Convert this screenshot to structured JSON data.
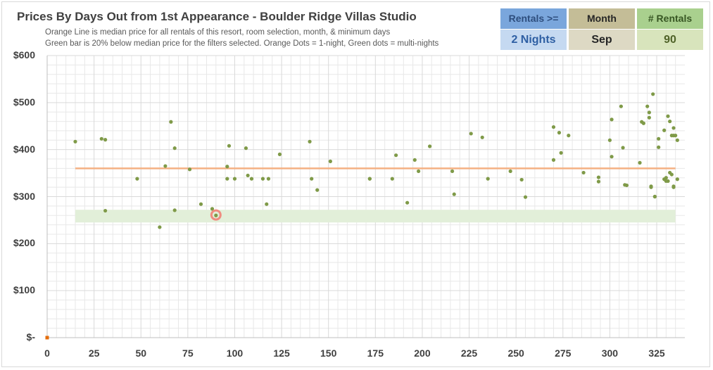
{
  "title": "Prices By Days Out from 1st Appearance - Boulder Ridge Villas Studio",
  "subtitle_lines": [
    "Orange Line is median price for all rentals of this resort, room selection, month, & minimum days",
    "Green bar is 20% below median price for the filters selected. Orange Dots = 1-night, Green dots = multi-nights"
  ],
  "filters": {
    "rentals": {
      "header": "Rentals >=",
      "value": "2 Nights",
      "header_bg": "#7aa6dc",
      "header_color": "#2e4e7e",
      "value_bg": "#c5d9f1",
      "value_color": "#2e5fa3"
    },
    "month": {
      "header": "Month",
      "value": "Sep",
      "header_bg": "#c4bd97",
      "header_color": "#262626",
      "value_bg": "#ddd9c4",
      "value_color": "#262626"
    },
    "count": {
      "header": "# Rentals",
      "value": "90",
      "header_bg": "#a9d08e",
      "header_color": "#375623",
      "value_bg": "#d8e4bc",
      "value_color": "#4f6228"
    }
  },
  "colors": {
    "median_line": "#f4b183",
    "green_band": "#e2efd9",
    "green_dot": "#7f9a48",
    "orange_dot": "#e46c0a",
    "highlight_ring": "#f08c80",
    "grid": "#e8e8e8",
    "grid_major": "#d9d9d9"
  },
  "chart_data": {
    "type": "scatter",
    "xlim": [
      0,
      340
    ],
    "ylim": [
      0,
      600
    ],
    "x_ticks": [
      0,
      25,
      50,
      75,
      100,
      125,
      150,
      175,
      200,
      225,
      250,
      275,
      300,
      325
    ],
    "x_tick_labels": [
      "0",
      "25",
      "50",
      "75",
      "100",
      "125",
      "150",
      "175",
      "200",
      "225",
      "250",
      "275",
      "300",
      "325"
    ],
    "y_ticks": [
      0,
      100,
      200,
      300,
      400,
      500,
      600
    ],
    "y_tick_labels": [
      "$-",
      "$100",
      "$200",
      "$300",
      "$400",
      "$500",
      "$600"
    ],
    "median_price": 360,
    "median_x_range": [
      15,
      335
    ],
    "green_band": {
      "x_range": [
        15,
        335
      ],
      "y_range": [
        245,
        272
      ]
    },
    "highlight_point": {
      "x": 90,
      "y": 261
    },
    "orange_points": [
      [
        0,
        0
      ]
    ],
    "green_points": [
      [
        15,
        417
      ],
      [
        29,
        423
      ],
      [
        31,
        421
      ],
      [
        31,
        270
      ],
      [
        48,
        338
      ],
      [
        60,
        235
      ],
      [
        63,
        365
      ],
      [
        66,
        459
      ],
      [
        68,
        403
      ],
      [
        68,
        271
      ],
      [
        76,
        358
      ],
      [
        82,
        284
      ],
      [
        88,
        274
      ],
      [
        90,
        260
      ],
      [
        96,
        338
      ],
      [
        96,
        364
      ],
      [
        97,
        408
      ],
      [
        100,
        338
      ],
      [
        106,
        403
      ],
      [
        107,
        345
      ],
      [
        109,
        338
      ],
      [
        115,
        338
      ],
      [
        117,
        284
      ],
      [
        118,
        338
      ],
      [
        124,
        390
      ],
      [
        140,
        417
      ],
      [
        141,
        338
      ],
      [
        144,
        314
      ],
      [
        151,
        375
      ],
      [
        172,
        338
      ],
      [
        172,
        338
      ],
      [
        184,
        338
      ],
      [
        186,
        388
      ],
      [
        192,
        287
      ],
      [
        196,
        378
      ],
      [
        198,
        354
      ],
      [
        204,
        407
      ],
      [
        216,
        354
      ],
      [
        217,
        305
      ],
      [
        226,
        434
      ],
      [
        232,
        426
      ],
      [
        235,
        338
      ],
      [
        247,
        354
      ],
      [
        253,
        336
      ],
      [
        255,
        299
      ],
      [
        270,
        448
      ],
      [
        270,
        378
      ],
      [
        273,
        436
      ],
      [
        274,
        393
      ],
      [
        278,
        430
      ],
      [
        286,
        351
      ],
      [
        294,
        341
      ],
      [
        294,
        332
      ],
      [
        300,
        420
      ],
      [
        301,
        464
      ],
      [
        301,
        385
      ],
      [
        306,
        492
      ],
      [
        307,
        404
      ],
      [
        309,
        324
      ],
      [
        316,
        372
      ],
      [
        317,
        459
      ],
      [
        318,
        456
      ],
      [
        320,
        492
      ],
      [
        321,
        479
      ],
      [
        321,
        468
      ],
      [
        322,
        320
      ],
      [
        323,
        518
      ],
      [
        324,
        300
      ],
      [
        324,
        300
      ],
      [
        326,
        423
      ],
      [
        326,
        405
      ],
      [
        329,
        441
      ],
      [
        329,
        337
      ],
      [
        330,
        333
      ],
      [
        331,
        333
      ],
      [
        331,
        471
      ],
      [
        332,
        460
      ],
      [
        332,
        351
      ],
      [
        333,
        347
      ],
      [
        333,
        430
      ],
      [
        334,
        320
      ],
      [
        334,
        430
      ],
      [
        334,
        446
      ],
      [
        335,
        430
      ],
      [
        336,
        420
      ],
      [
        336,
        337
      ],
      [
        334,
        322
      ],
      [
        330,
        340
      ],
      [
        322,
        322
      ],
      [
        308,
        325
      ]
    ]
  }
}
